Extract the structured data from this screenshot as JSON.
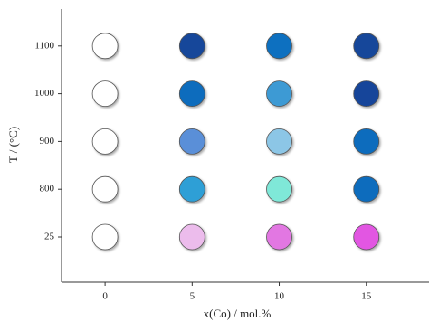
{
  "chart_data": {
    "type": "scatter",
    "xlabel": "x(Co) / mol.%",
    "ylabel": "T / (°C)",
    "x": [
      0,
      5,
      10,
      15
    ],
    "xlim": [
      -2.5,
      18.6
    ],
    "xticks": [
      0,
      5,
      10,
      15
    ],
    "ycategories": [
      "25",
      "800",
      "900",
      "1000",
      "1100"
    ],
    "colors": [
      [
        "#ffffff",
        "#ecbcec",
        "#e277e2",
        "#e256e2"
      ],
      [
        "#ffffff",
        "#2e9fd6",
        "#7fe8d8",
        "#0a6cbd"
      ],
      [
        "#ffffff",
        "#5a8fd8",
        "#8cc6e6",
        "#0a6cbd"
      ],
      [
        "#ffffff",
        "#0a6cbd",
        "#3c9ad4",
        "#17459a"
      ],
      [
        "#ffffff",
        "#15479a",
        "#0a6fc0",
        "#15479a"
      ]
    ]
  }
}
